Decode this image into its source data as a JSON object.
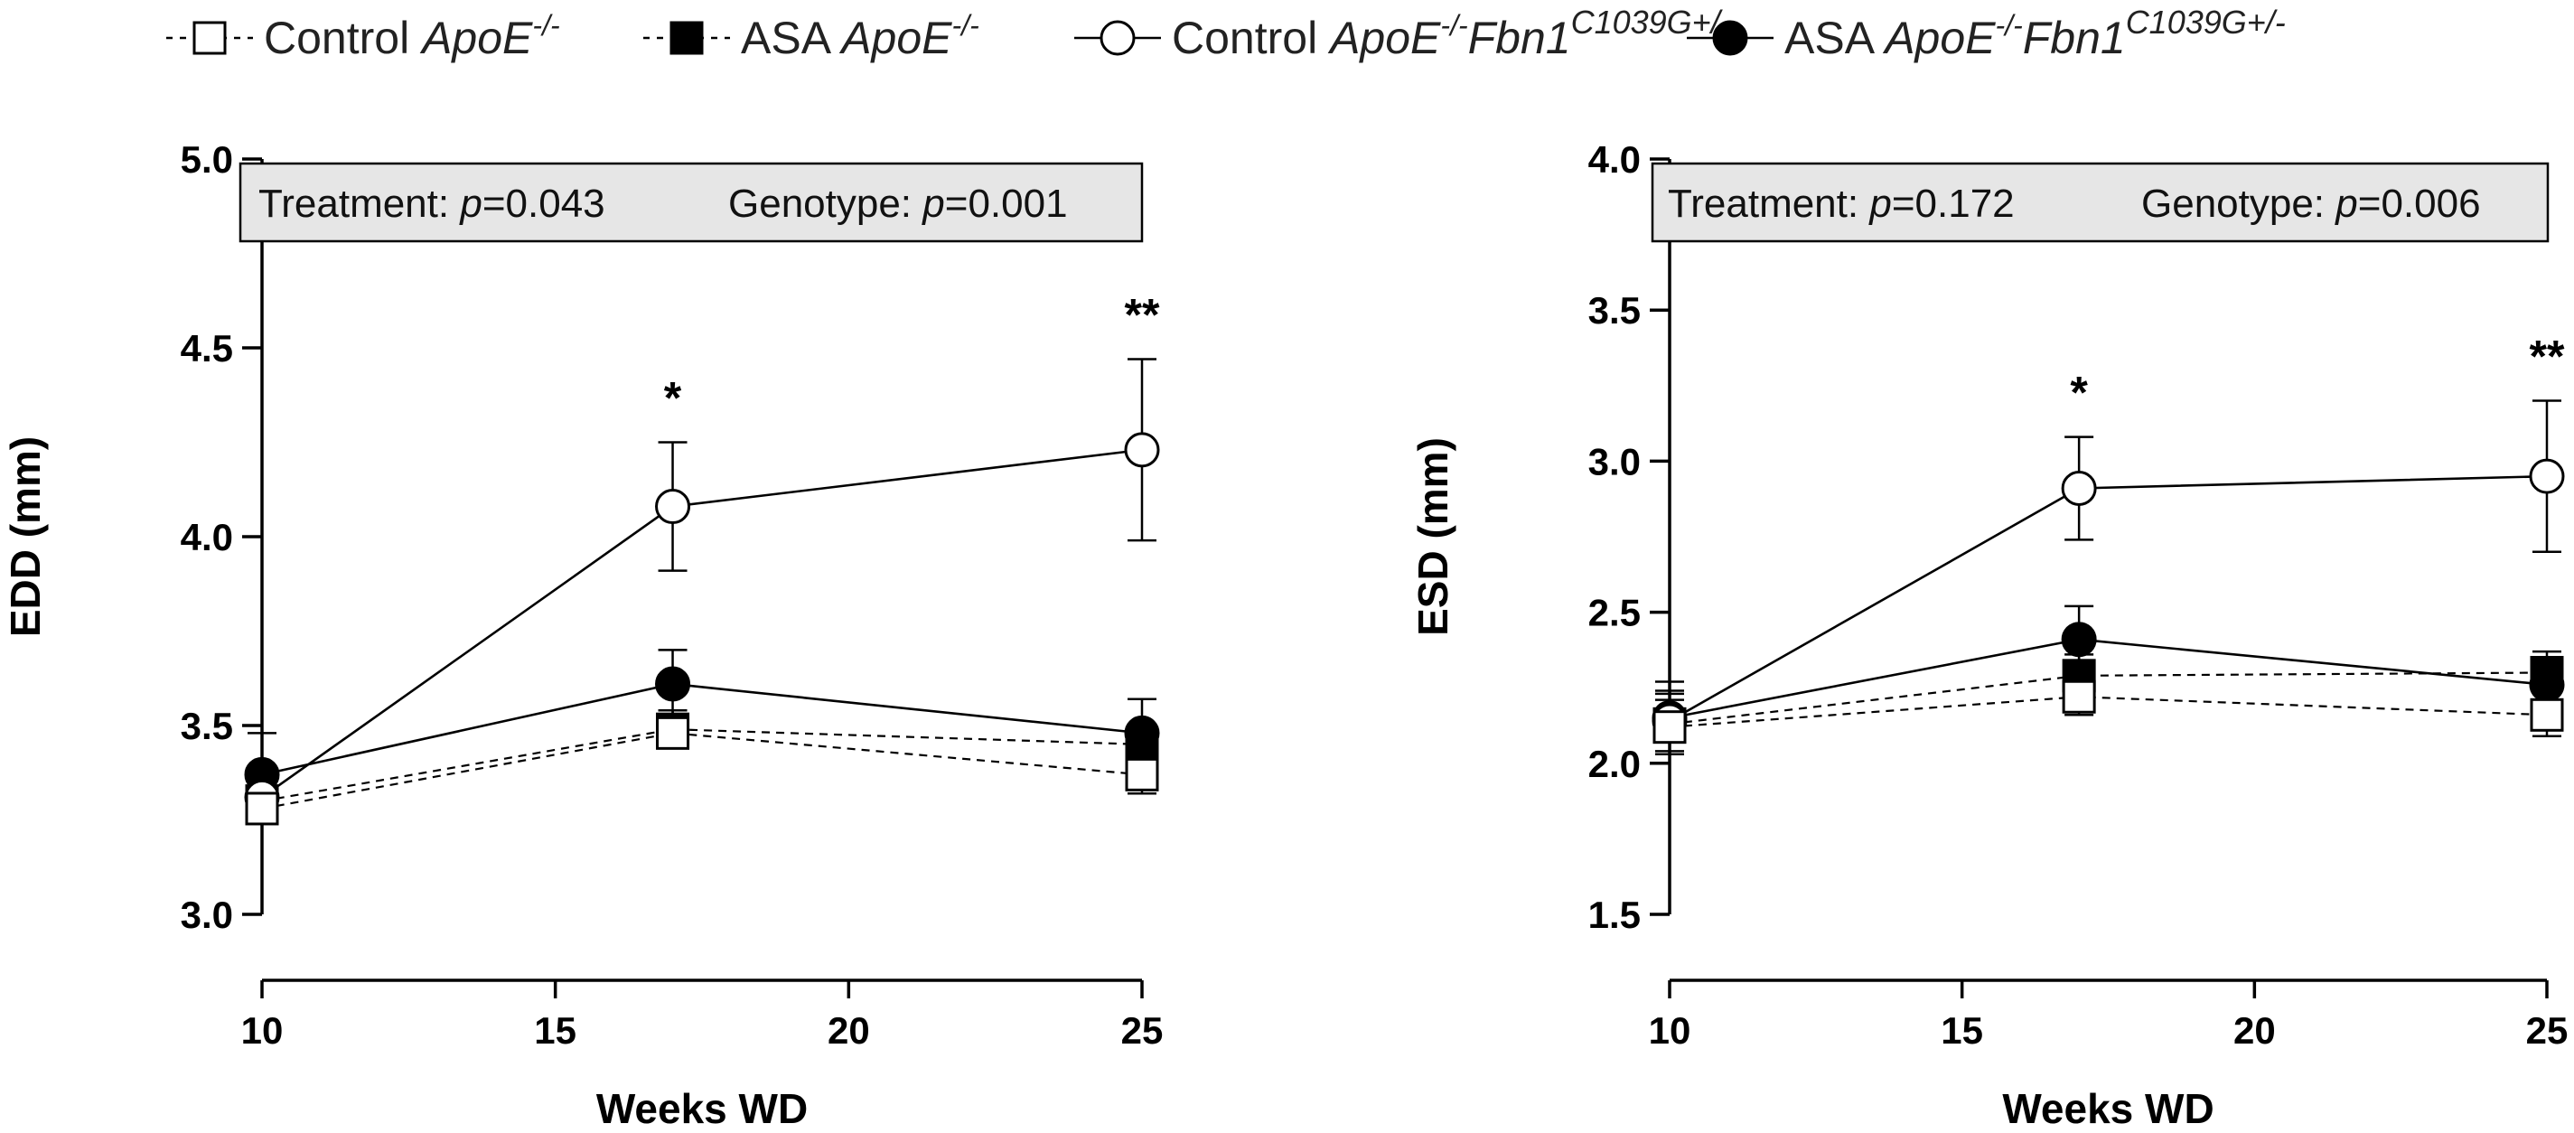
{
  "legend": {
    "items": [
      {
        "id": "control-apoe",
        "label": "Control ",
        "genotype": "ApoE",
        "sup": "-/-",
        "fbn": "",
        "fbn_sup": "",
        "marker": "square",
        "fill": "open",
        "dashed": true
      },
      {
        "id": "asa-apoe",
        "label": "ASA ",
        "genotype": "ApoE",
        "sup": "-/-",
        "fbn": "",
        "fbn_sup": "",
        "marker": "square",
        "fill": "filled",
        "dashed": true
      },
      {
        "id": "control-apoe-fbn1",
        "label": "Control ",
        "genotype": "ApoE",
        "sup": "-/-",
        "fbn": "Fbn1",
        "fbn_sup": "C1039G+/-",
        "marker": "circle",
        "fill": "open",
        "dashed": false
      },
      {
        "id": "asa-apoe-fbn1",
        "label": "ASA ",
        "genotype": "ApoE",
        "sup": "-/-",
        "fbn": "Fbn1",
        "fbn_sup": "C1039G+/-",
        "marker": "circle",
        "fill": "filled",
        "dashed": false
      }
    ]
  },
  "chart_data": [
    {
      "type": "line",
      "ylabel": "EDD (mm)",
      "xlabel": "Weeks WD",
      "xlim": [
        10,
        25
      ],
      "ylim": [
        3.0,
        5.0
      ],
      "xticks": [
        10,
        15,
        20,
        25
      ],
      "yticks": [
        3.0,
        3.5,
        4.0,
        4.5,
        5.0
      ],
      "ytick_labels": [
        "3.0",
        "3.5",
        "4.0",
        "4.5",
        "5.0"
      ],
      "x": [
        10,
        17,
        25
      ],
      "stats": {
        "treatment_label": "Treatment: ",
        "treatment_p": "0.043",
        "genotype_label": "Genotype: ",
        "genotype_p": "0.001",
        "p_symbol": "p"
      },
      "series": [
        {
          "name": "Control ApoE-/-",
          "values": [
            3.28,
            3.48,
            3.37
          ],
          "errors": [
            0.04,
            0.04,
            0.05
          ]
        },
        {
          "name": "ASA ApoE-/-",
          "values": [
            3.3,
            3.49,
            3.45
          ],
          "errors": [
            0.04,
            0.05,
            0.05
          ]
        },
        {
          "name": "Control ApoE-/-Fbn1C1039G+/-",
          "values": [
            3.31,
            4.08,
            4.23
          ],
          "errors": [
            0.05,
            0.17,
            0.24
          ]
        },
        {
          "name": "ASA ApoE-/-Fbn1C1039G+/-",
          "values": [
            3.37,
            3.61,
            3.48
          ],
          "errors": [
            0.11,
            0.09,
            0.09
          ]
        }
      ],
      "annotations": [
        {
          "x": 17,
          "text": "*"
        },
        {
          "x": 25,
          "text": "**"
        }
      ]
    },
    {
      "type": "line",
      "ylabel": "ESD (mm)",
      "xlabel": "Weeks WD",
      "xlim": [
        10,
        25
      ],
      "ylim": [
        1.5,
        4.0
      ],
      "xticks": [
        10,
        15,
        20,
        25
      ],
      "yticks": [
        1.5,
        2.0,
        2.5,
        3.0,
        3.5,
        4.0
      ],
      "ytick_labels": [
        "1.5",
        "2.0",
        "2.5",
        "3.0",
        "3.5",
        "4.0"
      ],
      "x": [
        10,
        17,
        25
      ],
      "stats": {
        "treatment_label": "Treatment: ",
        "treatment_p": "0.172",
        "genotype_label": "Genotype: ",
        "genotype_p": "0.006",
        "p_symbol": "p"
      },
      "series": [
        {
          "name": "Control ApoE-/-",
          "values": [
            2.12,
            2.22,
            2.16
          ],
          "errors": [
            0.09,
            0.06,
            0.07
          ]
        },
        {
          "name": "ASA ApoE-/-",
          "values": [
            2.13,
            2.29,
            2.3
          ],
          "errors": [
            0.1,
            0.07,
            0.07
          ]
        },
        {
          "name": "Control ApoE-/-Fbn1C1039G+/-",
          "values": [
            2.14,
            2.91,
            2.95
          ],
          "errors": [
            0.1,
            0.17,
            0.25
          ]
        },
        {
          "name": "ASA ApoE-/-Fbn1C1039G+/-",
          "values": [
            2.15,
            2.41,
            2.26
          ],
          "errors": [
            0.12,
            0.11,
            0.08
          ]
        }
      ],
      "annotations": [
        {
          "x": 17,
          "text": "*"
        },
        {
          "x": 25,
          "text": "**"
        }
      ]
    }
  ]
}
